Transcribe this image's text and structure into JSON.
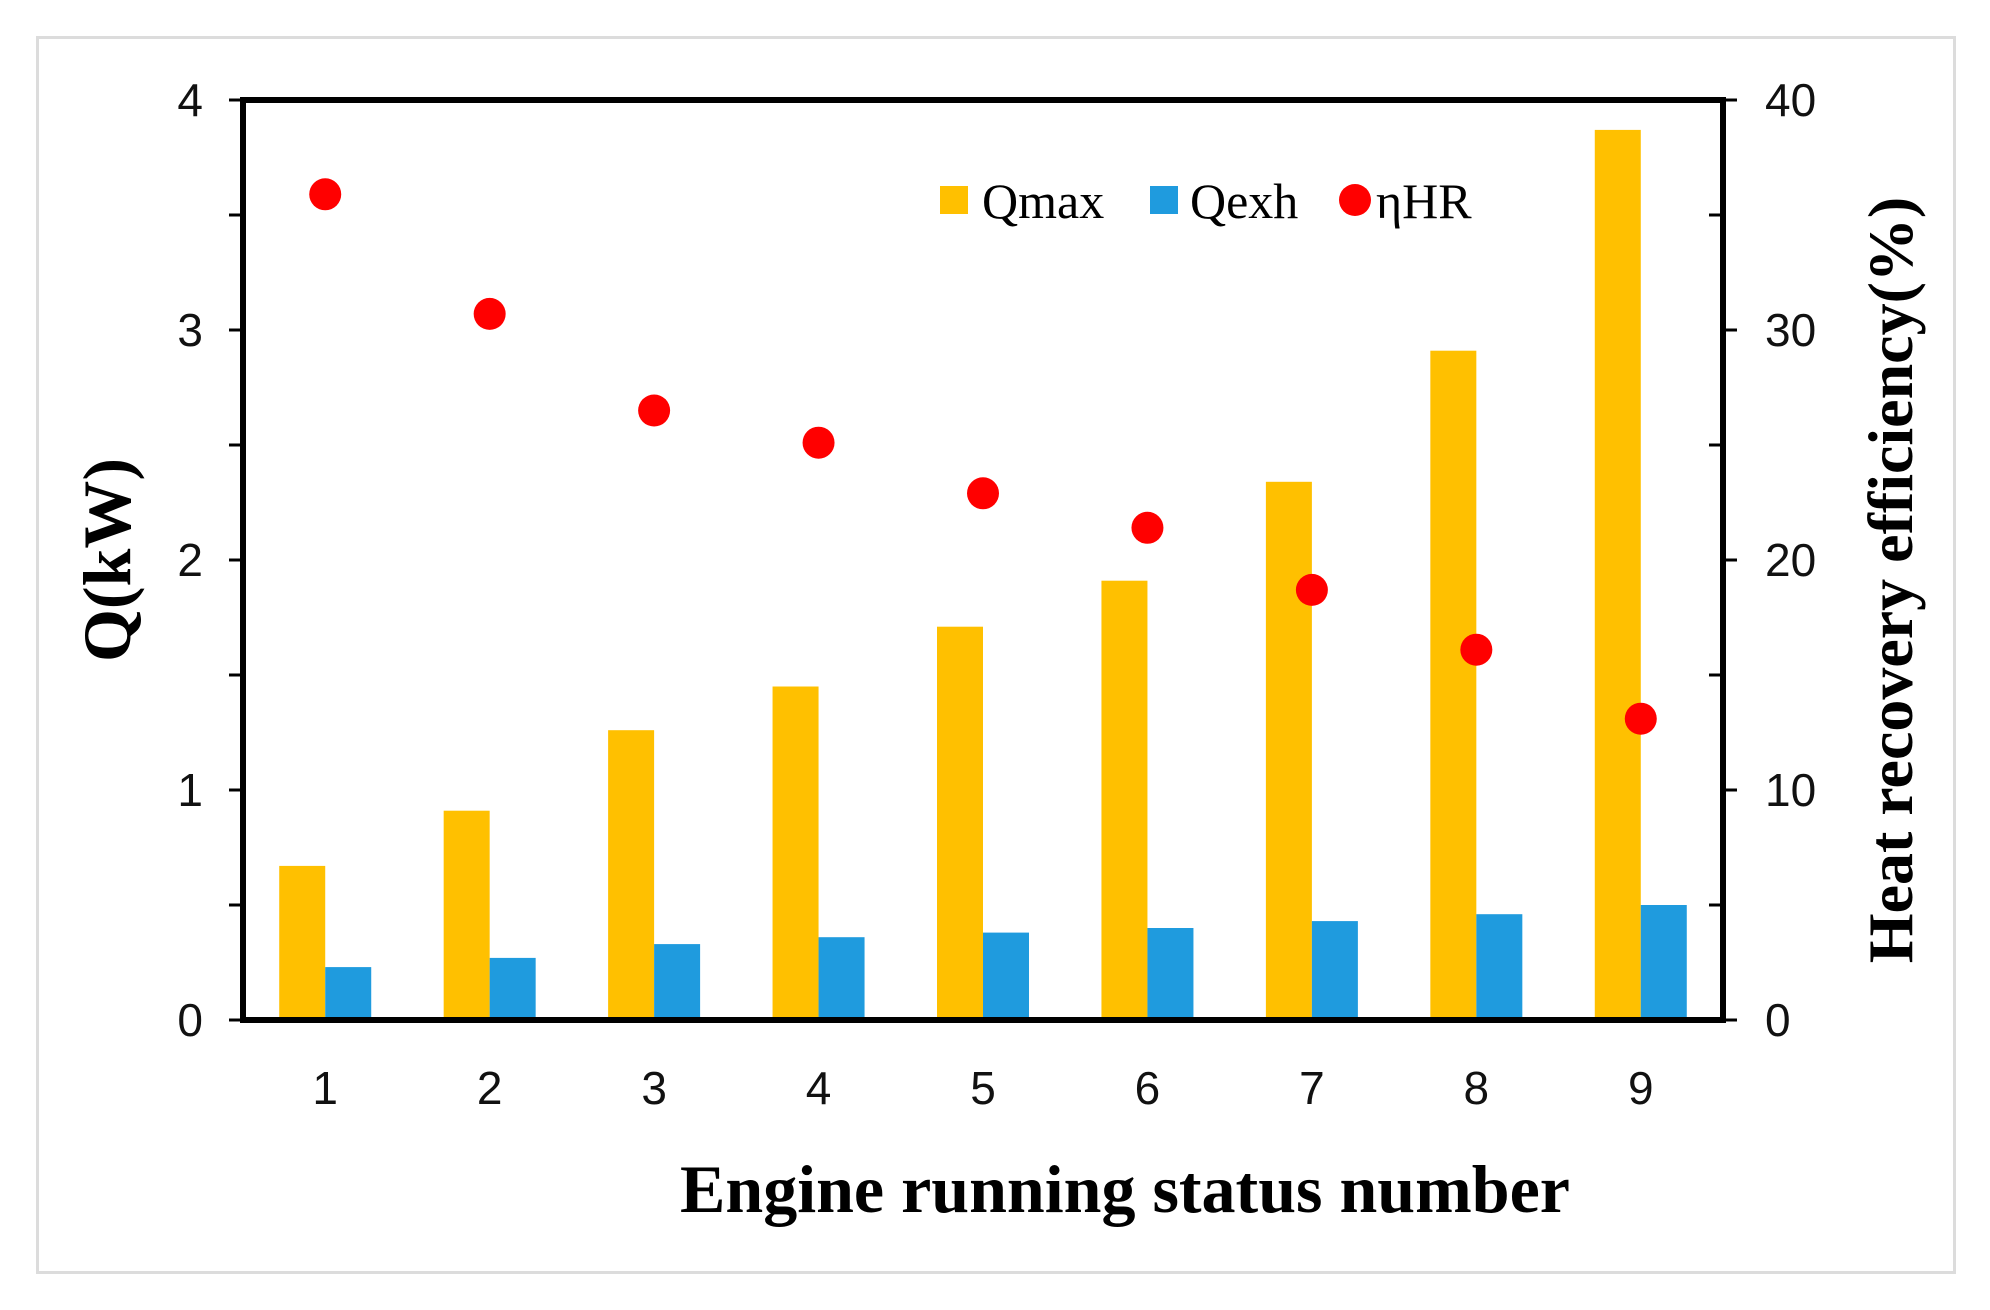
{
  "chart_data": {
    "type": "bar",
    "title": "",
    "xlabel": "Engine running status number",
    "ylabel": "Q(kW)",
    "y2label": "Heat recovery efficiency(%)",
    "categories": [
      "1",
      "2",
      "3",
      "4",
      "5",
      "6",
      "7",
      "8",
      "9"
    ],
    "ylim": [
      0,
      4
    ],
    "y2lim": [
      0,
      40
    ],
    "yticks": [
      "0",
      "1",
      "2",
      "3",
      "4"
    ],
    "y2ticks": [
      "0",
      "10",
      "20",
      "30",
      "40"
    ],
    "series": [
      {
        "name": "Qmax",
        "type": "bar",
        "axis": "left",
        "color": "#FFC000",
        "values": [
          0.67,
          0.91,
          1.26,
          1.45,
          1.71,
          1.91,
          2.34,
          2.91,
          3.87
        ]
      },
      {
        "name": "Qexh",
        "type": "bar",
        "axis": "left",
        "color": "#1F9BDE",
        "values": [
          0.23,
          0.27,
          0.33,
          0.36,
          0.38,
          0.4,
          0.43,
          0.46,
          0.5
        ]
      },
      {
        "name": "ηHR",
        "type": "scatter",
        "axis": "right",
        "color": "#FF0000",
        "values": [
          35.9,
          30.7,
          26.5,
          25.1,
          22.9,
          21.4,
          18.7,
          16.1,
          13.1
        ]
      }
    ],
    "legend": {
      "position": "top-right",
      "entries": [
        "Qmax",
        "Qexh",
        "ηHR"
      ]
    }
  }
}
